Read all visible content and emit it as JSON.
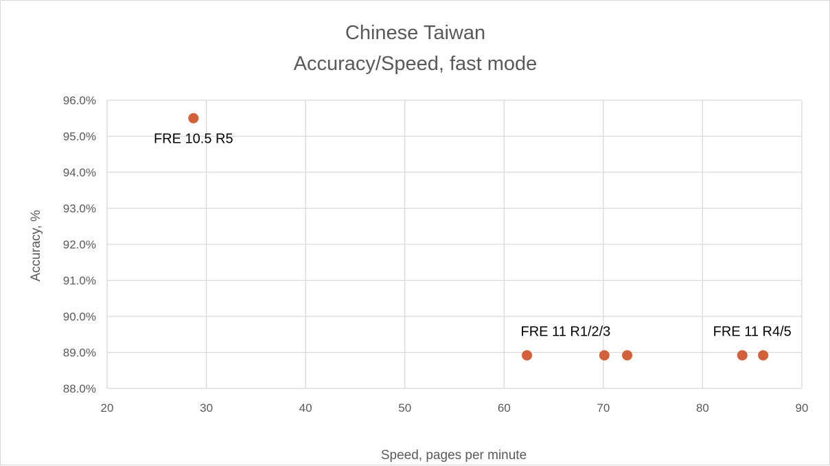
{
  "chart_data": {
    "type": "scatter",
    "title_lines": [
      "Chinese Taiwan",
      "Accuracy/Speed, fast mode"
    ],
    "xlabel": "Speed, pages per minute",
    "ylabel": "Accuracy, %",
    "xlim": [
      20,
      90
    ],
    "ylim": [
      88.0,
      96.0
    ],
    "x_ticks": [
      20,
      30,
      40,
      50,
      60,
      70,
      80,
      90
    ],
    "x_tick_labels": [
      "20",
      "30",
      "40",
      "50",
      "60",
      "70",
      "80",
      "90"
    ],
    "y_ticks": [
      88,
      89,
      90,
      91,
      92,
      93,
      94,
      95,
      96
    ],
    "y_tick_labels": [
      "88.0%",
      "89.0%",
      "90.0%",
      "91.0%",
      "92.0%",
      "93.0%",
      "94.0%",
      "95.0%",
      "96.0%"
    ],
    "grid": true,
    "marker_color": "#d2603a",
    "points": [
      {
        "x": 28.7,
        "y": 95.5
      },
      {
        "x": 62.3,
        "y": 88.92
      },
      {
        "x": 70.1,
        "y": 88.92
      },
      {
        "x": 72.4,
        "y": 88.92
      },
      {
        "x": 84.0,
        "y": 88.92
      },
      {
        "x": 86.1,
        "y": 88.92
      }
    ],
    "annotations": [
      {
        "text": "FRE 10.5 R5",
        "x": 28.7,
        "y": 95.5,
        "position": "below"
      },
      {
        "text": "FRE 11 R1/2/3",
        "x": 66.2,
        "y": 88.92,
        "position": "above"
      },
      {
        "text": "FRE 11 R4/5",
        "x": 85.0,
        "y": 88.92,
        "position": "above"
      }
    ]
  }
}
